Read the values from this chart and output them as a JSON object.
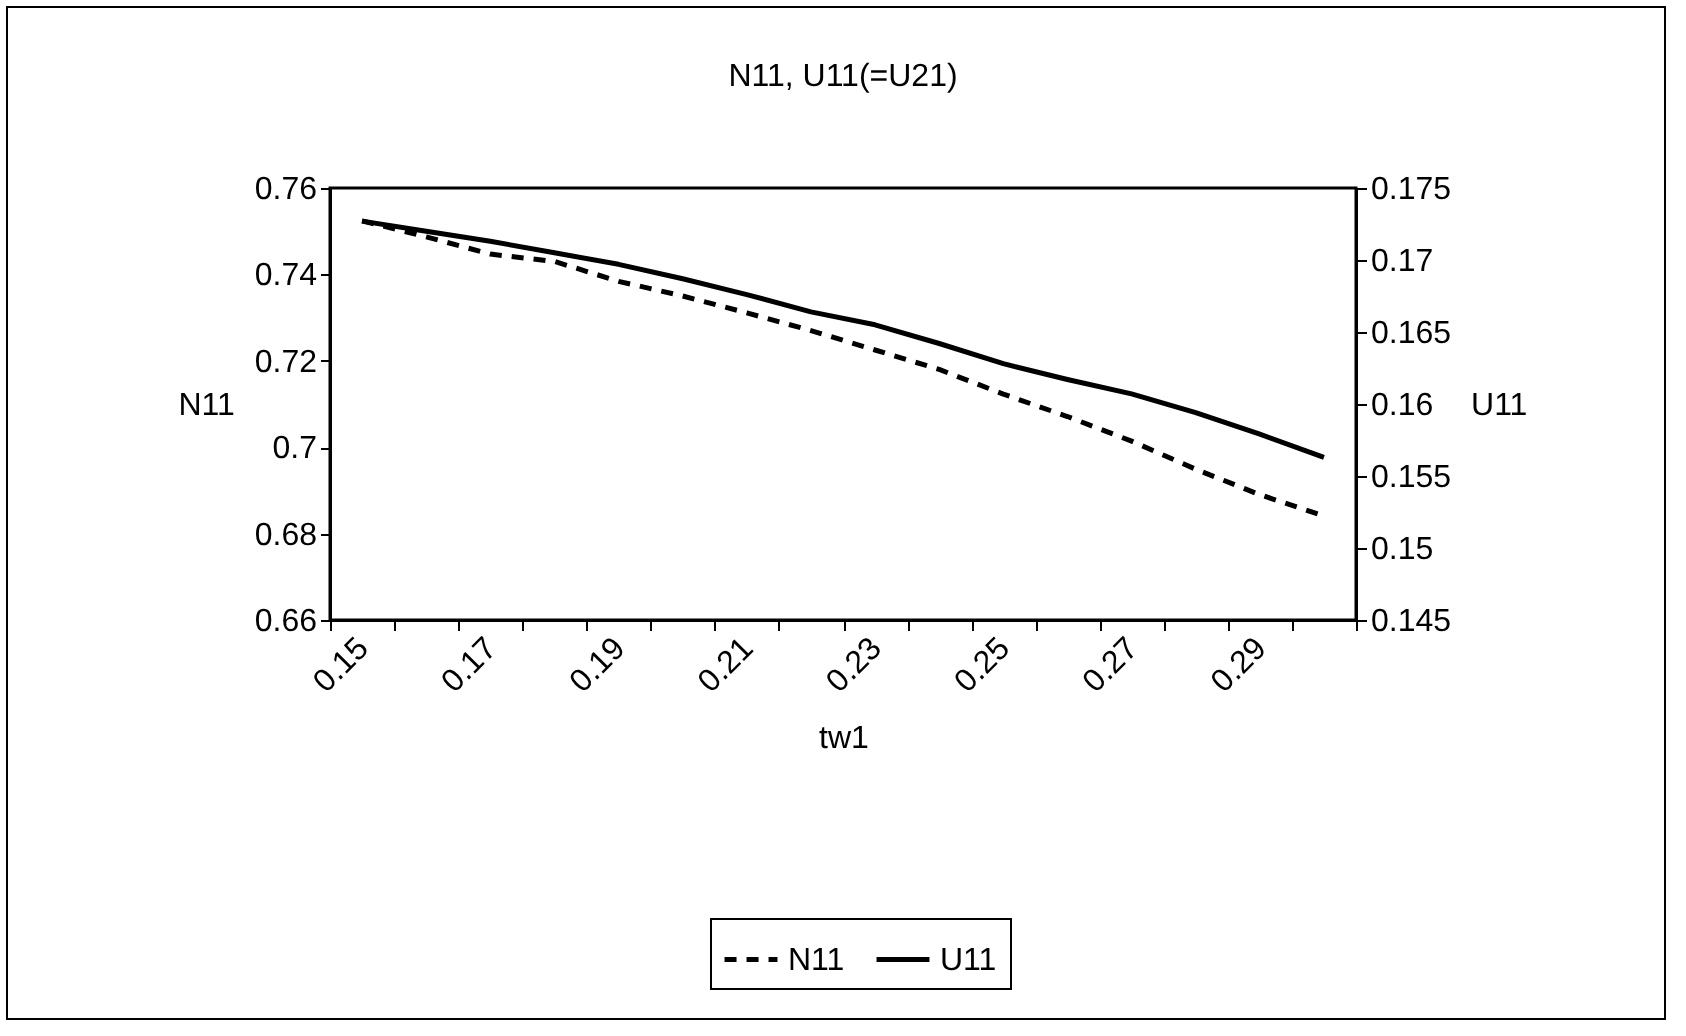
{
  "chart_data": {
    "type": "line",
    "title": "N11, U11(=U21)",
    "xlabel": "tw1",
    "ylabel": "N11",
    "y2label": "U11",
    "categories": [
      "0.15",
      null,
      "0.17",
      null,
      "0.19",
      null,
      "0.21",
      null,
      "0.23",
      null,
      "0.25",
      null,
      "0.27",
      null,
      "0.29",
      null
    ],
    "series": [
      {
        "name": "N11",
        "color": "#000000",
        "line_style": "dashed",
        "axis": "y",
        "values": [
          0.7524,
          0.7487,
          0.7447,
          0.743,
          0.7384,
          0.735,
          0.7311,
          0.727,
          0.7225,
          0.718,
          0.7123,
          0.7071,
          0.7014,
          0.6949,
          0.689,
          0.6841
        ]
      },
      {
        "name": "U11",
        "color": "#000000",
        "line_style": "solid",
        "axis": "y2",
        "values": [
          0.1727,
          0.172,
          0.1713,
          0.1705,
          0.1697,
          0.1687,
          0.1676,
          0.1664,
          0.1655,
          0.1642,
          0.1628,
          0.1617,
          0.1607,
          0.1594,
          0.1579,
          0.1563
        ]
      }
    ],
    "ylim": [
      0.66,
      0.76
    ],
    "yticks": [
      0.66,
      0.68,
      0.7,
      0.72,
      0.74,
      0.76
    ],
    "y2lim": [
      0.145,
      0.175
    ],
    "y2ticks": [
      0.145,
      0.15,
      0.155,
      0.16,
      0.165,
      0.17,
      0.175
    ],
    "grid": false,
    "legend": "bottom",
    "marker": "none"
  }
}
